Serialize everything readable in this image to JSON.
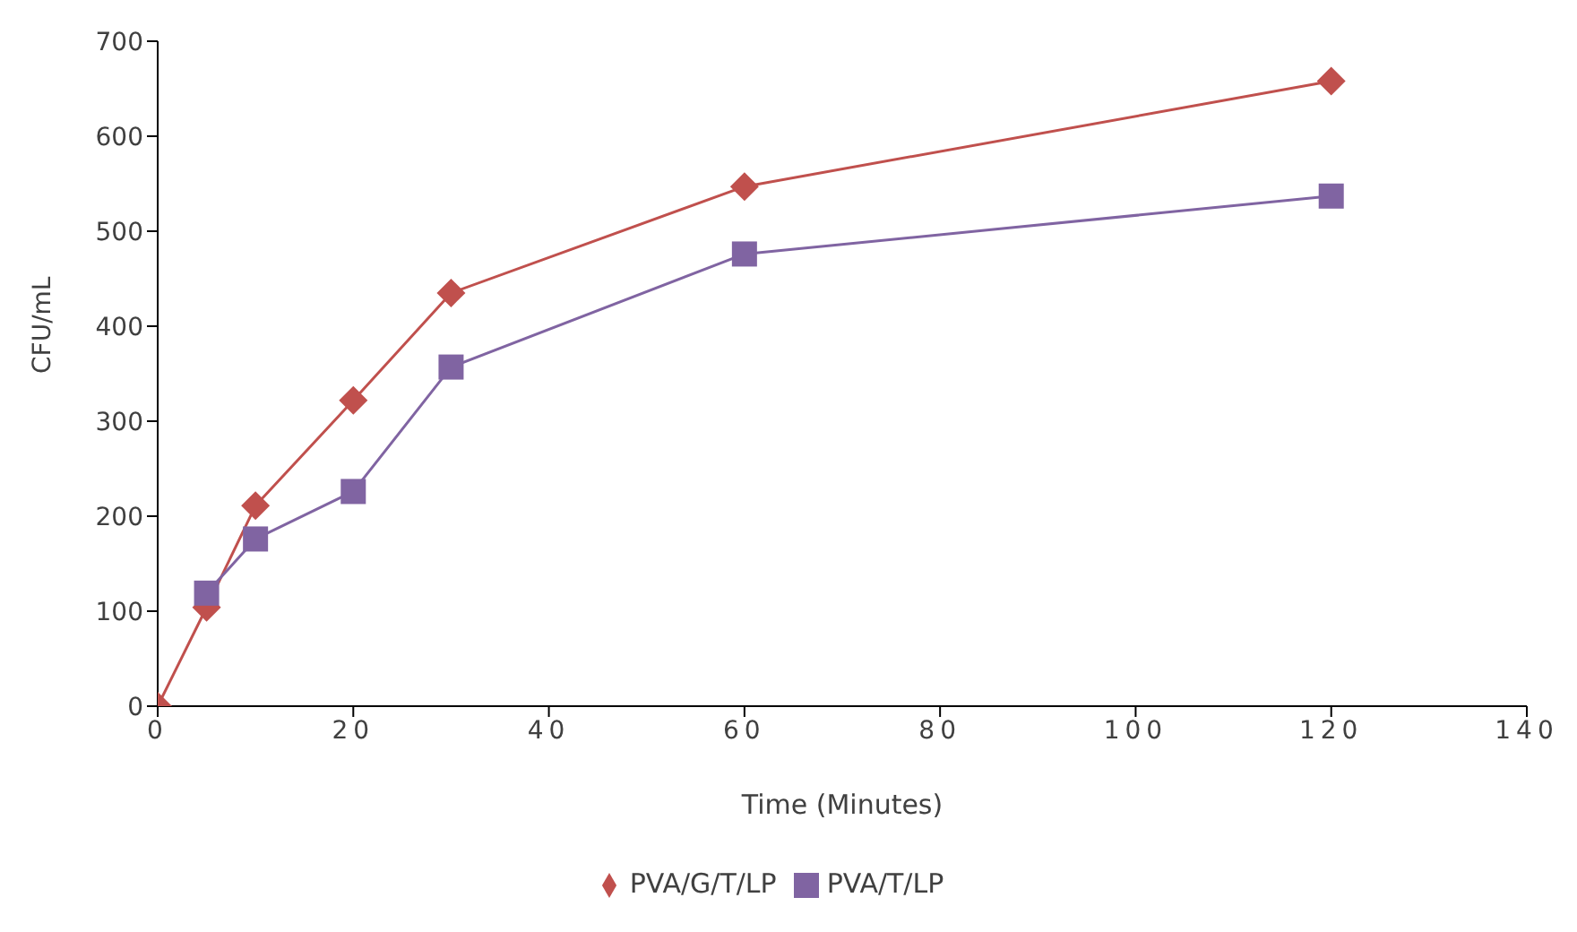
{
  "chart_data": {
    "type": "line",
    "xlabel": "Time (Minutes)",
    "ylabel": "CFU/mL",
    "x": [
      0,
      5,
      10,
      20,
      30,
      60,
      120
    ],
    "series": [
      {
        "name": "PVA/G/T/LP",
        "color": "#c0504d",
        "marker": "diamond",
        "values": [
          0,
          104,
          211,
          322,
          435,
          547,
          658
        ]
      },
      {
        "name": "PVA/T/LP",
        "color": "#8064a2",
        "marker": "square",
        "values": [
          null,
          119,
          176,
          226,
          357,
          476,
          537
        ]
      }
    ],
    "xlim": [
      0,
      140
    ],
    "xticks": [
      0,
      20,
      40,
      60,
      80,
      100,
      120,
      140
    ],
    "ylim": [
      0,
      700
    ],
    "yticks": [
      0,
      100,
      200,
      300,
      400,
      500,
      600,
      700
    ],
    "grid": false,
    "legend": "bottom"
  }
}
